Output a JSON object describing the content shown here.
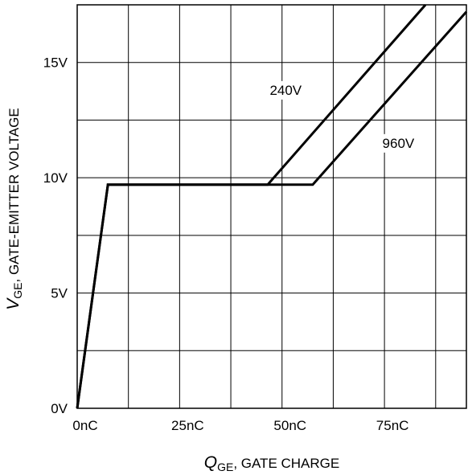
{
  "chart_data": {
    "type": "line",
    "title": "",
    "xlabel": {
      "symbol": "Q",
      "subscript": "GE",
      "text": ", GATE CHARGE"
    },
    "ylabel": {
      "symbol": "V",
      "subscript": "GE",
      "text": ", GATE-EMITTER VOLTAGE"
    },
    "xlim": [
      0,
      95
    ],
    "ylim": [
      0,
      17.5
    ],
    "x_ticks": [
      {
        "value": 0,
        "label": "0nC"
      },
      {
        "value": 25,
        "label": "25nC"
      },
      {
        "value": 50,
        "label": "50nC"
      },
      {
        "value": 75,
        "label": "75nC"
      }
    ],
    "y_ticks": [
      {
        "value": 0,
        "label": "0V"
      },
      {
        "value": 5,
        "label": "5V"
      },
      {
        "value": 10,
        "label": "10V"
      },
      {
        "value": 15,
        "label": "15V"
      }
    ],
    "x_grid": [
      0,
      12.5,
      25,
      37.5,
      50,
      62.5,
      75,
      87.5
    ],
    "y_grid": [
      0,
      2.5,
      5,
      7.5,
      10,
      12.5,
      15,
      17.5
    ],
    "grid": true,
    "series": [
      {
        "name": "240V",
        "label_pos": {
          "x": 47,
          "y": 13.6
        },
        "points": [
          [
            0,
            0
          ],
          [
            7.5,
            9.7
          ],
          [
            46.5,
            9.7
          ],
          [
            85,
            17.5
          ]
        ]
      },
      {
        "name": "960V",
        "label_pos": {
          "x": 74.5,
          "y": 11.3
        },
        "points": [
          [
            0,
            0
          ],
          [
            7.5,
            9.7
          ],
          [
            57.5,
            9.7
          ],
          [
            95,
            17.2
          ]
        ]
      }
    ]
  }
}
